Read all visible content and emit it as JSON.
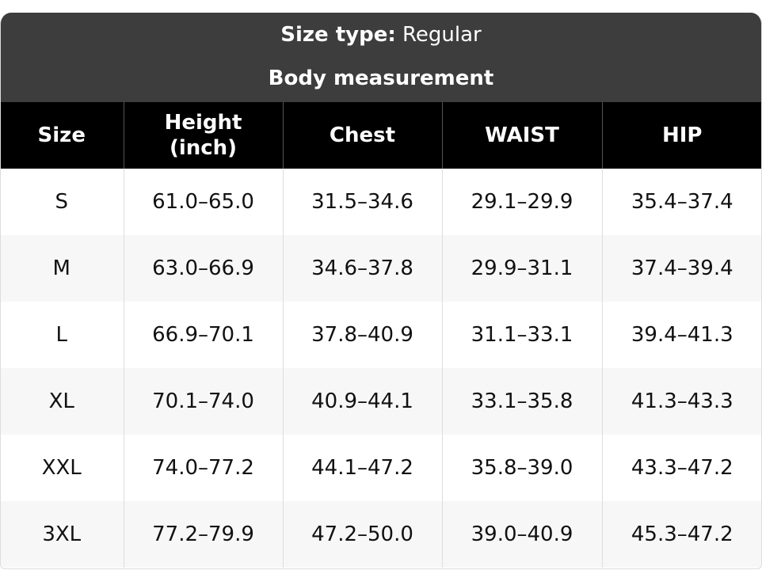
{
  "header": {
    "size_type_label": "Size type:",
    "size_type_value": "Regular",
    "subtitle": "Body measurement"
  },
  "table": {
    "columns": [
      "Size",
      "Height (inch)",
      "Chest",
      "WAIST",
      "HIP"
    ],
    "rows": [
      [
        "S",
        "61.0–65.0",
        "31.5–34.6",
        "29.1–29.9",
        "35.4–37.4"
      ],
      [
        "M",
        "63.0–66.9",
        "34.6–37.8",
        "29.9–31.1",
        "37.4–39.4"
      ],
      [
        "L",
        "66.9–70.1",
        "37.8–40.9",
        "31.1–33.1",
        "39.4–41.3"
      ],
      [
        "XL",
        "70.1–74.0",
        "40.9–44.1",
        "33.1–35.8",
        "41.3–43.3"
      ],
      [
        "XXL",
        "74.0–77.2",
        "44.1–47.2",
        "35.8–39.0",
        "43.3–47.2"
      ],
      [
        "3XL",
        "77.2–79.9",
        "47.2–50.0",
        "39.0–40.9",
        "45.3–47.2"
      ]
    ]
  }
}
